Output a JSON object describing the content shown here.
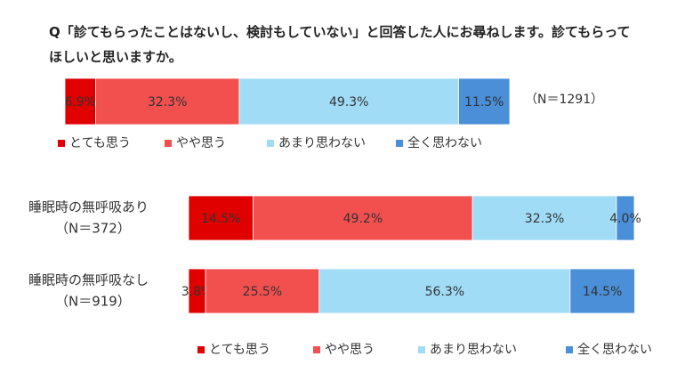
{
  "chart_data": [
    {
      "type": "stacked-bar-horizontal",
      "title": "Q「診てもらったことはないし、検討もしていない」と回答した人にお尋ねします。診てもらってほしいと思いますか。",
      "annotation": "（N＝1291）",
      "categories": [
        null
      ],
      "xlim": [
        0,
        100
      ],
      "legend": "bottom",
      "series": [
        {
          "name": "とても思う",
          "color": "#e00000",
          "values": [
            6.9
          ],
          "value_labels": [
            "6.9%"
          ]
        },
        {
          "name": "やや思う",
          "color": "#f24f4f",
          "values": [
            32.3
          ],
          "value_labels": [
            "32.3%"
          ]
        },
        {
          "name": "あまり思わない",
          "color": "#a0dcf6",
          "values": [
            49.3
          ],
          "value_labels": [
            "49.3%"
          ]
        },
        {
          "name": "全く思わない",
          "color": "#4a8fd8",
          "values": [
            11.5
          ],
          "value_labels": [
            "11.5%"
          ]
        }
      ]
    },
    {
      "type": "stacked-bar-horizontal",
      "categories": [
        "睡眠時の無呼吸あり",
        "睡眠時の無呼吸なし"
      ],
      "category_notes": [
        "（N＝372）",
        "（N＝919）"
      ],
      "xlim": [
        0,
        100
      ],
      "legend": "bottom",
      "series": [
        {
          "name": "とても思う",
          "color": "#e00000",
          "values": [
            14.5,
            3.8
          ],
          "value_labels": [
            "14.5%",
            "3.8%"
          ]
        },
        {
          "name": "やや思う",
          "color": "#f24f4f",
          "values": [
            49.2,
            25.5
          ],
          "value_labels": [
            "49.2%",
            "25.5%"
          ]
        },
        {
          "name": "あまり思わない",
          "color": "#a0dcf6",
          "values": [
            32.3,
            56.3
          ],
          "value_labels": [
            "32.3%",
            "56.3%"
          ]
        },
        {
          "name": "全く思わない",
          "color": "#4a8fd8",
          "values": [
            4.0,
            14.5
          ],
          "value_labels": [
            "4.0%",
            "14.5%"
          ]
        }
      ]
    }
  ]
}
